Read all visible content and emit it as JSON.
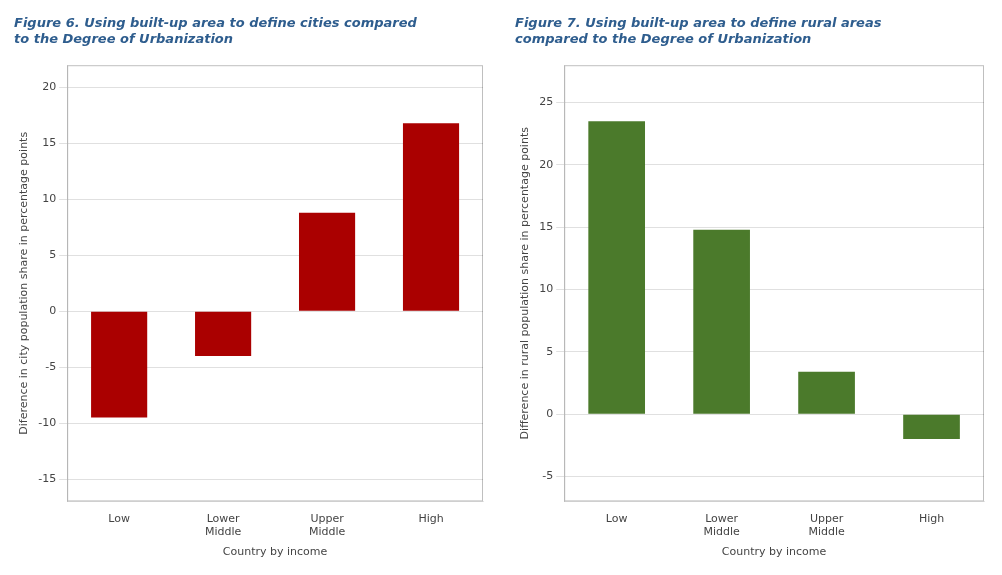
{
  "chart_data": [
    {
      "type": "bar",
      "title": "Figure 6. Using built-up area to define cities compared\nto the Degree of Urbanization",
      "categories": [
        "Low",
        "Lower\nMiddle",
        "Upper\nMiddle",
        "High"
      ],
      "values": [
        -9.5,
        -4.0,
        8.8,
        16.8
      ],
      "color": "#AA0000",
      "x_label": "Country by income",
      "y_label": "Diference in city population share in percentage points",
      "ylim": [
        -17,
        22
      ],
      "yticks": [
        -15,
        -10,
        -5,
        0,
        5,
        10,
        15,
        20
      ],
      "grid": true
    },
    {
      "type": "bar",
      "title": "Figure 7. Using built-up area to define rural areas\ncompared to the Degree of Urbanization",
      "categories": [
        "Low",
        "Lower\nMiddle",
        "Upper\nMiddle",
        "High"
      ],
      "values": [
        23.5,
        14.8,
        3.4,
        -2.0
      ],
      "color": "#4B7A2B",
      "x_label": "Country by income",
      "y_label": "Difference in rural population share in percentage points",
      "ylim": [
        -7,
        28
      ],
      "yticks": [
        -5,
        0,
        5,
        10,
        15,
        20,
        25
      ],
      "grid": true
    }
  ]
}
